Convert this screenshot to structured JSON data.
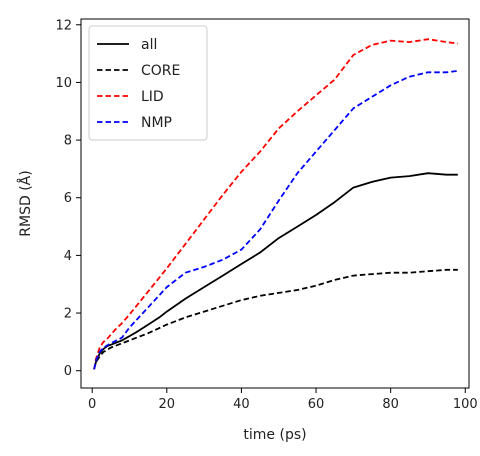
{
  "chart_data": {
    "type": "line",
    "title": "",
    "xlabel": "time (ps)",
    "ylabel": "RMSD (Å)",
    "xlim": [
      -3,
      101
    ],
    "ylim": [
      -0.6,
      12.2
    ],
    "xticks": [
      0,
      20,
      40,
      60,
      80,
      100
    ],
    "yticks": [
      0,
      2,
      4,
      6,
      8,
      10,
      12
    ],
    "grid": false,
    "legend_position": "upper-left",
    "series": [
      {
        "name": "all",
        "color": "#000000",
        "style": "solid",
        "x": [
          0.5,
          1,
          2,
          3,
          4,
          6,
          8,
          10,
          12,
          15,
          18,
          20,
          25,
          30,
          35,
          40,
          45,
          50,
          55,
          60,
          65,
          70,
          75,
          80,
          85,
          90,
          95,
          98
        ],
        "y": [
          0.05,
          0.3,
          0.6,
          0.75,
          0.85,
          0.95,
          1.05,
          1.2,
          1.35,
          1.6,
          1.85,
          2.05,
          2.5,
          2.9,
          3.3,
          3.7,
          4.1,
          4.6,
          5.0,
          5.4,
          5.85,
          6.35,
          6.55,
          6.7,
          6.75,
          6.85,
          6.8,
          6.8
        ]
      },
      {
        "name": "CORE",
        "color": "#000000",
        "style": "dashed",
        "x": [
          0.5,
          1,
          2,
          3,
          5,
          8,
          10,
          15,
          20,
          25,
          30,
          35,
          40,
          45,
          50,
          55,
          60,
          65,
          70,
          75,
          80,
          85,
          90,
          95,
          98
        ],
        "y": [
          0.05,
          0.3,
          0.5,
          0.65,
          0.8,
          0.95,
          1.05,
          1.3,
          1.6,
          1.85,
          2.05,
          2.25,
          2.45,
          2.6,
          2.7,
          2.8,
          2.95,
          3.15,
          3.3,
          3.35,
          3.4,
          3.4,
          3.45,
          3.5,
          3.5
        ]
      },
      {
        "name": "LID",
        "color": "#ff0000",
        "style": "dashed",
        "x": [
          0.5,
          1,
          2,
          3,
          4,
          6,
          8,
          10,
          15,
          20,
          25,
          30,
          35,
          40,
          45,
          50,
          55,
          60,
          65,
          70,
          75,
          80,
          85,
          90,
          95,
          98
        ],
        "y": [
          0.05,
          0.4,
          0.8,
          1.0,
          1.1,
          1.4,
          1.65,
          1.95,
          2.75,
          3.55,
          4.4,
          5.25,
          6.1,
          6.9,
          7.6,
          8.4,
          9.0,
          9.55,
          10.1,
          10.95,
          11.3,
          11.45,
          11.4,
          11.5,
          11.4,
          11.35
        ]
      },
      {
        "name": "NMP",
        "color": "#0000ff",
        "style": "dashed",
        "x": [
          0.5,
          1,
          2,
          3,
          5,
          8,
          10,
          15,
          20,
          25,
          30,
          35,
          40,
          45,
          50,
          55,
          60,
          65,
          70,
          75,
          80,
          85,
          90,
          95,
          98
        ],
        "y": [
          0.05,
          0.35,
          0.65,
          0.8,
          0.95,
          1.15,
          1.5,
          2.2,
          2.9,
          3.4,
          3.6,
          3.85,
          4.2,
          4.9,
          5.9,
          6.85,
          7.6,
          8.35,
          9.1,
          9.5,
          9.9,
          10.2,
          10.35,
          10.35,
          10.4
        ]
      }
    ]
  }
}
